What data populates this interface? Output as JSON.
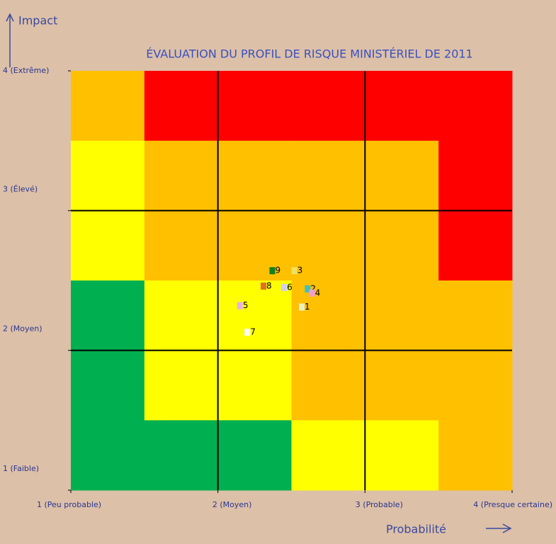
{
  "chart_data": {
    "type": "heatmap",
    "title": "ÉVALUATION DU PROFIL DE RISQUE MINISTÉRIEL DE 2011",
    "y_label": "Impact",
    "x_label": "Probabilité",
    "xlim": [
      1,
      4
    ],
    "ylim": [
      1,
      4
    ],
    "xticks": [
      {
        "value": 1,
        "label": "1 (Peu probable)"
      },
      {
        "value": 2,
        "label": "2 (Moyen)"
      },
      {
        "value": 3,
        "label": "3 (Probable)"
      },
      {
        "value": 4,
        "label": "4 (Presque certaine)"
      }
    ],
    "yticks": [
      {
        "value": 1,
        "label": "1 (Faible)"
      },
      {
        "value": 2,
        "label": "2 (Moyen)"
      },
      {
        "value": 3,
        "label": "3 (Élevé)"
      },
      {
        "value": 4,
        "label": "4 (Extrême)"
      }
    ],
    "grid": true,
    "cells": [
      [
        "#ffc000",
        "#ff0000",
        "#ff0000",
        "#ff0000",
        "#ff0000",
        "#ff0000"
      ],
      [
        "#ffff00",
        "#ffc000",
        "#ffc000",
        "#ffc000",
        "#ffc000",
        "#ff0000"
      ],
      [
        "#ffff00",
        "#ffc000",
        "#ffc000",
        "#ffc000",
        "#ffc000",
        "#ff0000"
      ],
      [
        "#00b050",
        "#ffff00",
        "#ffff00",
        "#ffc000",
        "#ffc000",
        "#ffc000"
      ],
      [
        "#00b050",
        "#ffff00",
        "#ffff00",
        "#ffc000",
        "#ffc000",
        "#ffc000"
      ],
      [
        "#00b050",
        "#00b050",
        "#00b050",
        "#ffff00",
        "#ffff00",
        "#ffc000"
      ]
    ],
    "points": {
      "labels": [
        "1",
        "2",
        "3",
        "4",
        "5",
        "6",
        "7",
        "8",
        "9"
      ],
      "x": [
        2.57,
        2.61,
        2.52,
        2.64,
        2.15,
        2.45,
        2.2,
        2.31,
        2.37
      ],
      "y": [
        2.31,
        2.44,
        2.57,
        2.41,
        2.32,
        2.45,
        2.13,
        2.46,
        2.57
      ],
      "colors": [
        "#e8f0c0",
        "#40c0c0",
        "#f0e060",
        "#f0a0d0",
        "#e8b0e0",
        "#d0d0f0",
        "#ffffff",
        "#e07020",
        "#108020"
      ]
    }
  }
}
